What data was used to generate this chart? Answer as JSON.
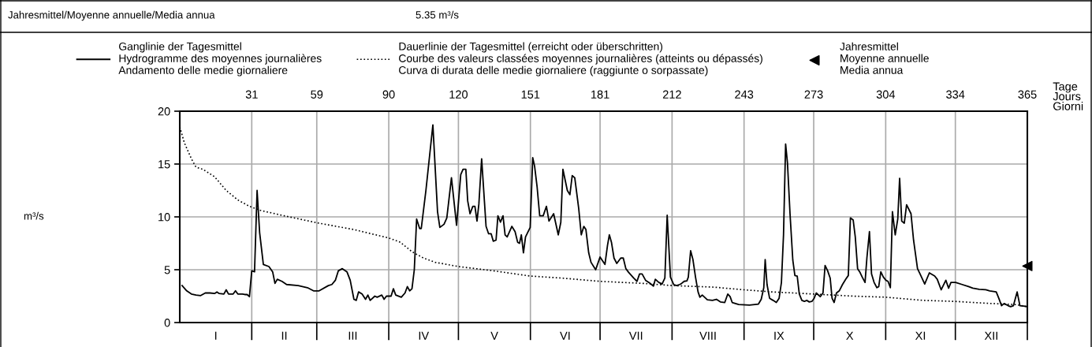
{
  "chart_data": {
    "type": "line",
    "annotations": [
      "Jahresmittel/Moyenne annuelle/Media annua",
      "5.35 m³/s",
      "m³/s",
      "I",
      "II",
      "III",
      "IV",
      "V",
      "VI",
      "VII",
      "VIII",
      "IX",
      "X",
      "XI",
      "XII"
    ],
    "xlabel": "Tage\nJours\nGiorni",
    "xlim": [
      0,
      365
    ],
    "ylim": [
      0,
      20
    ],
    "yticks": [
      0,
      5,
      10,
      15,
      20
    ],
    "xticks": [
      31,
      59,
      90,
      120,
      151,
      181,
      212,
      243,
      273,
      304,
      334,
      365
    ],
    "grid": true,
    "legend": "top",
    "series": [
      {
        "name": "Ganglinie der Tagesmittel\nHydrogramme des moyennes journalières\nAndamento delle medie giornaliere",
        "color": "#000000",
        "line_style": "solid",
        "marker": "none",
        "x": [
          1,
          3,
          5,
          7,
          9,
          11,
          13,
          15,
          16,
          17,
          19,
          20,
          21,
          23,
          24,
          25,
          27,
          28,
          29,
          30,
          31,
          32.2,
          33.3,
          34.4,
          36,
          38.4,
          40,
          41,
          42,
          44,
          46,
          51,
          55,
          57.6,
          60,
          64,
          65.5,
          67,
          68.3,
          70,
          72,
          73.4,
          75,
          76,
          77,
          78.5,
          80,
          81,
          82,
          84,
          85,
          87,
          88,
          89,
          91,
          92,
          93,
          95.4,
          97,
          98,
          99,
          100,
          101,
          102,
          103.3,
          104,
          106,
          109,
          111,
          112,
          113.8,
          115,
          117,
          119.2,
          121,
          122,
          123.2,
          124,
          125,
          126.2,
          127.1,
          128,
          128.8,
          130,
          131.9,
          133,
          134.1,
          135,
          136.2,
          137,
          138.1,
          139.2,
          140.1,
          141,
          143,
          144.4,
          145.5,
          146.3,
          147.1,
          148,
          148.9,
          150.9,
          152,
          152.8,
          153.9,
          155,
          156.5,
          157.9,
          159,
          161,
          163,
          164.1,
          165,
          166.9,
          168,
          169,
          170.1,
          171.8,
          172.9,
          174,
          174.9,
          176.1,
          177.1,
          179.1,
          181,
          183.1,
          184.2,
          185,
          185.9,
          187,
          188.2,
          189.9,
          191,
          192.1,
          193.3,
          195.5,
          196.9,
          198,
          199.1,
          200.6,
          202.3,
          204,
          204.8,
          206.3,
          207.7,
          208.9,
          209.9,
          211.3,
          212.7,
          213.9,
          215.3,
          216.1,
          217.2,
          218.4,
          219,
          220,
          221,
          222.1,
          223.2,
          224,
          225,
          227.2,
          229.4,
          231.1,
          232.8,
          234.7,
          236,
          237,
          237.9,
          240.7,
          245.3,
          249.2,
          250.4,
          251.5,
          252.1,
          252.9,
          254,
          255.5,
          256.9,
          258.1,
          259.1,
          260,
          260.9,
          261.7,
          262.8,
          264,
          264.9,
          265.9,
          266.8,
          267.9,
          269,
          270,
          271.1,
          272.2,
          273.2,
          274.1,
          275.8,
          277,
          277.9,
          279,
          280.1,
          280.9,
          281.8,
          282.8,
          284,
          285.4,
          286.8,
          287.9,
          288.8,
          290,
          290.9,
          291.9,
          292.8,
          293.9,
          295.1,
          295.9,
          297,
          297.9,
          299,
          300.2,
          301,
          301.9,
          303,
          304.1,
          305,
          306,
          306.9,
          308.1,
          309.2,
          310,
          310.9,
          312,
          313,
          314.9,
          316,
          317.7,
          318.8,
          320.8,
          322.8,
          325.1,
          326.2,
          327.9,
          329.9,
          331.1,
          332.1,
          334.1,
          336.9,
          339.7,
          341.5,
          344.3,
          347.1,
          348.8,
          351.6,
          352.7,
          353.9,
          355,
          356.7,
          357.8,
          359,
          360.6,
          361.8,
          363.5,
          365
        ],
        "values": [
          3.5,
          3.0,
          2.7,
          2.6,
          2.55,
          2.8,
          2.8,
          2.75,
          2.9,
          2.75,
          2.7,
          3.1,
          2.7,
          2.7,
          3.0,
          2.7,
          2.7,
          2.65,
          2.65,
          2.45,
          4.9,
          4.8,
          12.5,
          8.5,
          5.5,
          5.3,
          4.8,
          3.7,
          4.1,
          3.9,
          3.6,
          3.5,
          3.3,
          3.0,
          3.0,
          3.5,
          3.6,
          4.0,
          4.9,
          5.1,
          4.8,
          4.0,
          2.2,
          2.1,
          2.9,
          2.7,
          2.2,
          2.6,
          2.1,
          2.5,
          2.4,
          2.6,
          2.2,
          2.5,
          2.5,
          3.2,
          2.6,
          2.4,
          2.8,
          3.4,
          3.0,
          3.2,
          5.0,
          9.8,
          8.9,
          8.9,
          12.5,
          18.7,
          10.5,
          9.0,
          9.3,
          9.9,
          13.7,
          9.2,
          14.0,
          14.5,
          14.5,
          11.5,
          10.3,
          11.0,
          11.0,
          9.6,
          11.2,
          15.5,
          9.1,
          8.4,
          8.4,
          7.7,
          7.8,
          10.1,
          9.5,
          10.1,
          8.3,
          8.1,
          9.1,
          8.6,
          7.6,
          7.5,
          8.3,
          6.6,
          8.1,
          9.0,
          15.6,
          14.8,
          12.8,
          10.1,
          10.1,
          11.0,
          9.6,
          10.3,
          8.3,
          9.5,
          14.5,
          12.5,
          12.1,
          13.9,
          13.7,
          10.8,
          8.3,
          9.1,
          8.8,
          6.6,
          5.7,
          5.0,
          6.2,
          5.5,
          7.3,
          8.3,
          7.6,
          6.1,
          5.6,
          6.1,
          6.1,
          5.1,
          4.75,
          4.2,
          3.9,
          4.6,
          4.6,
          4.0,
          3.75,
          3.45,
          4.1,
          3.8,
          3.65,
          4.2,
          10.15,
          4.3,
          3.6,
          3.5,
          3.6,
          3.7,
          3.9,
          3.95,
          4.3,
          6.8,
          5.95,
          4.3,
          2.9,
          2.4,
          2.6,
          2.15,
          2.1,
          2.2,
          1.95,
          1.9,
          2.7,
          2.45,
          1.9,
          1.7,
          1.65,
          1.75,
          2.2,
          3.3,
          5.95,
          3.6,
          2.3,
          2.1,
          1.9,
          2.3,
          3.8,
          8.3,
          16.9,
          15.1,
          10.3,
          5.9,
          4.45,
          4.4,
          2.7,
          2.1,
          2.0,
          2.1,
          1.95,
          2.0,
          2.3,
          2.8,
          2.45,
          2.8,
          5.4,
          4.9,
          4.2,
          2.3,
          1.9,
          2.8,
          3.0,
          3.6,
          4.1,
          4.45,
          9.9,
          9.7,
          8.1,
          5.1,
          4.8,
          4.3,
          3.8,
          6.1,
          8.6,
          4.6,
          3.8,
          3.3,
          3.4,
          4.8,
          4.3,
          4.0,
          3.9,
          3.3,
          10.5,
          8.3,
          9.8,
          13.65,
          9.6,
          9.4,
          11.15,
          10.3,
          7.8,
          5.1,
          4.6,
          3.65,
          4.7,
          4.4,
          4.1,
          3.1,
          4.0,
          3.25,
          3.8,
          3.8,
          3.6,
          3.4,
          3.25,
          3.15,
          3.1,
          3.0,
          2.9,
          2.3,
          1.6,
          1.8,
          1.6,
          1.5,
          1.6,
          2.9,
          1.6,
          1.55,
          1.5
        ]
      },
      {
        "name": "Dauerlinie der Tagesmittel (erreicht oder überschritten)\nCourbe des valeurs classées moyennes journalières (atteints ou dépassés)\nCurva di durata delle medie giornaliere (raggiunte o sorpassate)",
        "color": "#000000",
        "line_style": "dotted",
        "marker": "none",
        "x": [
          0,
          2,
          5,
          7,
          10,
          15,
          20,
          25,
          30,
          35,
          45,
          60,
          75,
          90,
          95,
          100,
          105,
          110,
          120,
          135,
          151,
          165,
          181,
          200,
          212,
          230,
          243,
          255,
          273,
          290,
          304,
          320,
          334,
          350,
          360,
          365
        ],
        "values": [
          18.5,
          17.0,
          15.5,
          14.7,
          14.5,
          13.8,
          12.5,
          11.6,
          11.0,
          10.6,
          10.1,
          9.4,
          8.8,
          8.0,
          7.6,
          6.7,
          6.1,
          5.7,
          5.3,
          4.9,
          4.4,
          4.2,
          3.9,
          3.7,
          3.5,
          3.35,
          3.1,
          2.9,
          2.7,
          2.5,
          2.4,
          2.1,
          2.0,
          1.8,
          1.7,
          1.5
        ]
      },
      {
        "name": "Jahresmittel\nMoyenne annuelle\nMedia annua",
        "type": "scatter",
        "color": "#000000",
        "marker": "triangle",
        "x": [
          365
        ],
        "values": [
          5.35
        ]
      }
    ]
  }
}
